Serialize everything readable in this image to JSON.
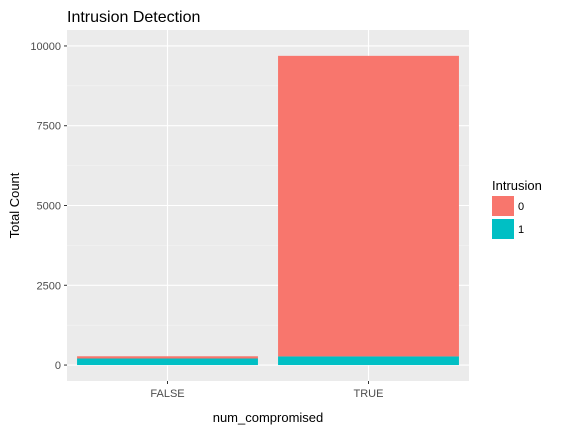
{
  "chart_data": {
    "type": "bar",
    "stacked": true,
    "title": "Intrusion Detection",
    "xlabel": "num_compromised",
    "ylabel": "Total Count",
    "categories": [
      "FALSE",
      "TRUE"
    ],
    "series": [
      {
        "name": "0",
        "values": [
          70,
          9420
        ]
      },
      {
        "name": "1",
        "values": [
          205,
          270
        ]
      }
    ],
    "ylim": [
      -500,
      10500
    ],
    "yticks": [
      0,
      2500,
      5000,
      7500,
      10000
    ],
    "ytick_labels": [
      "0",
      "2500",
      "5000",
      "7500",
      "10000"
    ],
    "grid": true,
    "legend": {
      "title": "Intrusion",
      "placement": "right"
    },
    "colors": {
      "0": "#F8766D",
      "1": "#00BFC4",
      "panel": "#EBEBEB",
      "grid_major": "#FFFFFF"
    }
  }
}
